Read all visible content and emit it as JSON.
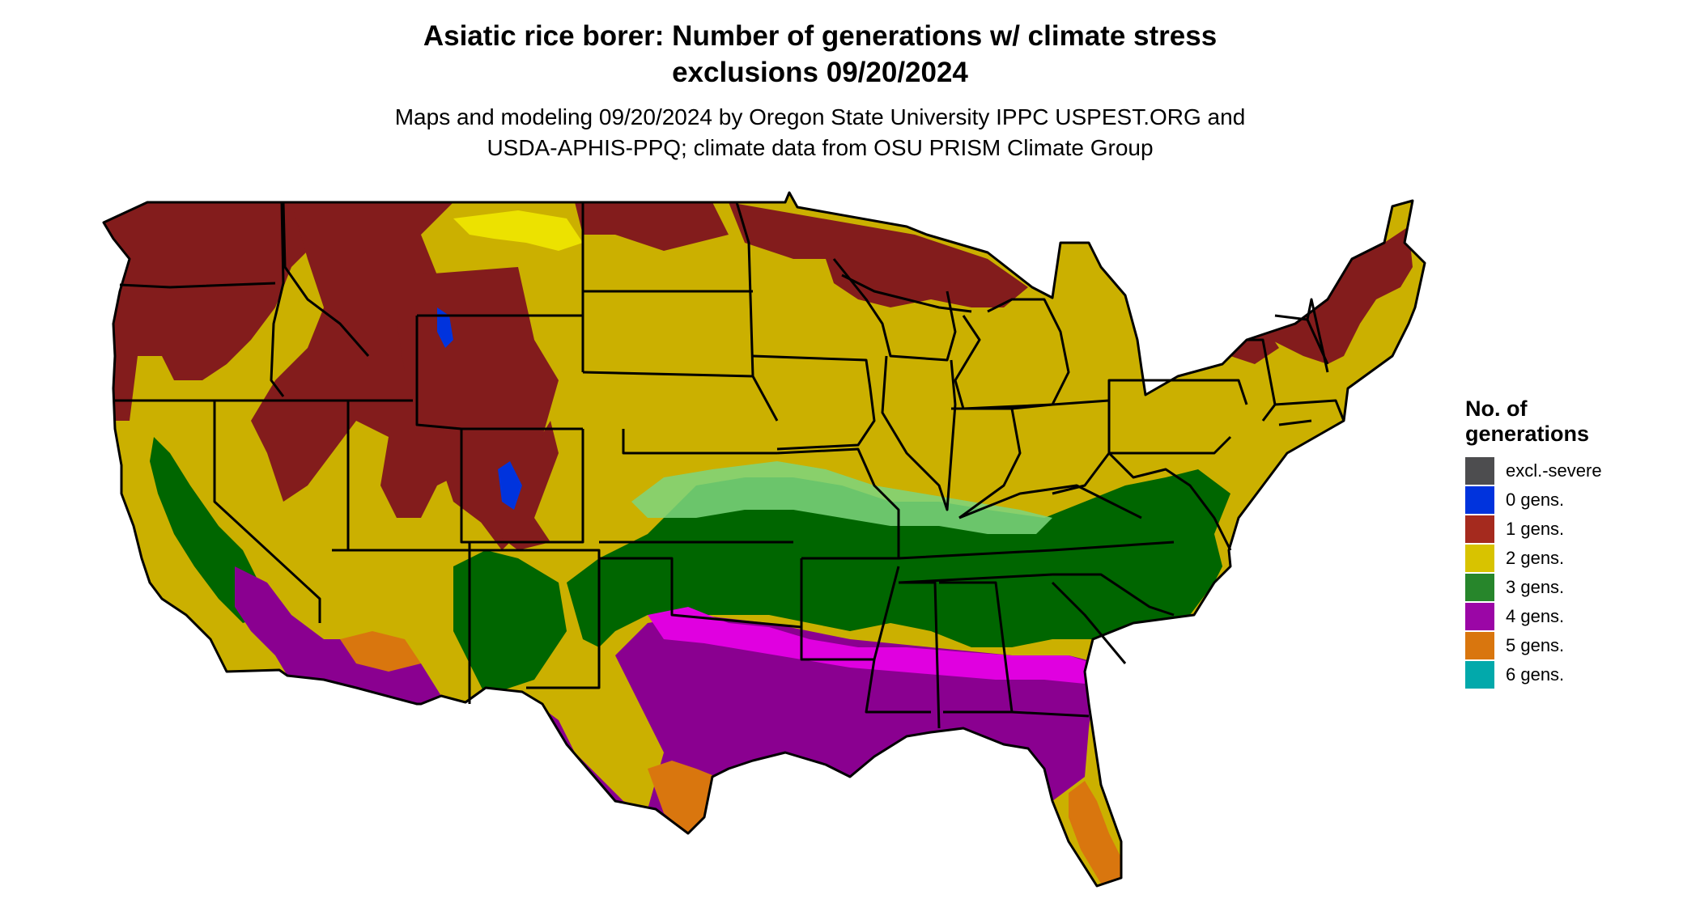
{
  "title": {
    "line1": "Asiatic rice borer: Number of generations w/ climate stress",
    "line2": "exclusions 09/20/2024"
  },
  "subtitle": {
    "line1": "Maps and modeling 09/20/2024 by Oregon State University IPPC USPEST.ORG and",
    "line2": "USDA-APHIS-PPQ; climate data from OSU PRISM Climate Group"
  },
  "legend": {
    "title_line1": "No. of",
    "title_line2": "generations",
    "items": [
      {
        "label": "excl.-severe",
        "color": "#4d4d4f"
      },
      {
        "label": "0 gens.",
        "color": "#0033dd"
      },
      {
        "label": "1 gens.",
        "color": "#a52a1e"
      },
      {
        "label": "2 gens.",
        "color": "#d8c300"
      },
      {
        "label": "3 gens.",
        "color": "#27862b"
      },
      {
        "label": "4 gens.",
        "color": "#9b06a6"
      },
      {
        "label": "5 gens.",
        "color": "#d9760e"
      },
      {
        "label": "6 gens.",
        "color": "#02a9ab"
      }
    ]
  },
  "map_colors": {
    "gen1": "#831c1c",
    "gen2": "#cbb000",
    "gen2_bright": "#f0e800",
    "gen3": "#006600",
    "gen3_light": "#7ed67e",
    "gen4": "#8a0090",
    "gen4_magenta": "#e000e0",
    "gen5": "#d9760e",
    "gen0": "#0033dd",
    "gen6": "#02a9ab",
    "borders": "#000000"
  }
}
